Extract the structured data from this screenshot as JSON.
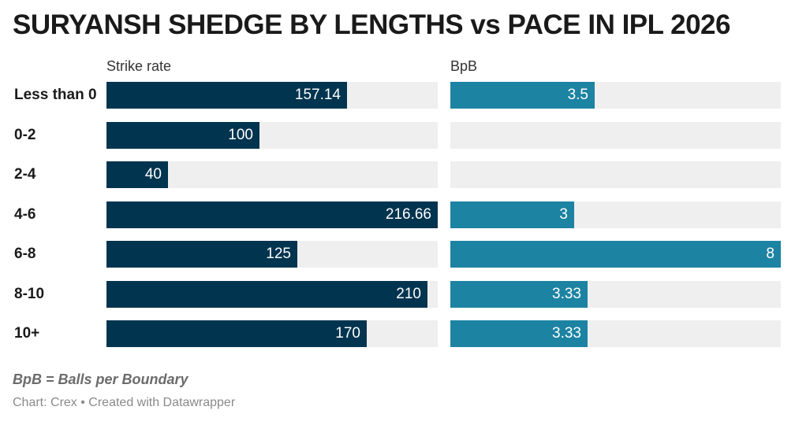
{
  "title": "SURYANSH SHEDGE BY LENGTHS vs PACE IN IPL 2026",
  "note": "BpB = Balls per Boundary",
  "credit": "Chart: Crex • Created with Datawrapper",
  "colors": {
    "strike_rate_bar": "#01344f",
    "bpb_bar": "#1d83a2",
    "track": "#efefef"
  },
  "chart_data": {
    "type": "bar",
    "orientation": "horizontal",
    "title": "SURYANSH SHEDGE BY LENGTHS vs PACE IN IPL 2026",
    "categories": [
      "Less than 0",
      "0-2",
      "2-4",
      "4-6",
      "6-8",
      "8-10",
      "10+"
    ],
    "series": [
      {
        "name": "Strike rate",
        "values": [
          157.14,
          100,
          40,
          216.66,
          125,
          210,
          170
        ],
        "labels": [
          "157.14",
          "100",
          "40",
          "216.66",
          "125",
          "210",
          "170"
        ],
        "xlim": [
          0,
          216.66
        ]
      },
      {
        "name": "BpB",
        "values": [
          3.5,
          null,
          null,
          3,
          8,
          3.33,
          3.33
        ],
        "labels": [
          "3.5",
          "",
          "",
          "3",
          "8",
          "3.33",
          "3.33"
        ],
        "xlim": [
          0,
          8
        ]
      }
    ],
    "grid": false,
    "legend": "none"
  }
}
